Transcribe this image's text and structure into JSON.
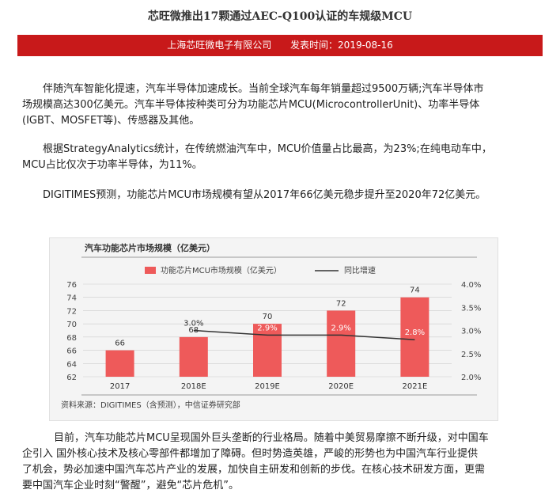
{
  "article": {
    "title": "芯旺微推出17颗通过AEC-Q100认证的车规级MCU",
    "publisher": "上海芯旺微电子有限公司",
    "publish_label": "发表时间：",
    "publish_date": "2019-08-16"
  },
  "paragraphs": {
    "p1_line1": "伴随汽车智能化提速，汽车半导体加速成长。当前全球汽车每年销量超过9500万辆;汽车半导体市",
    "p1_line2": "场规模高达300亿美元。汽车半导体按种类可分为功能芯片MCU(MicrocontrollerUnit)、功率半导体",
    "p1_line3": "(IGBT、MOSFET等)、传感器及其他。",
    "p2_line1": "根据StrategyAnalytics统计，在传统燃油汽车中，MCU价值量占比最高，为23%;在纯电动车中，",
    "p2_line2": "MCU占比仅次于功率半导体，为11%。",
    "p3_line1": "DIGITIMES预测，功能芯片MCU市场规模有望从2017年66亿美元稳步提升至2020年72亿美元。",
    "p4_line1": "目前，汽车功能芯片MCU呈现国外巨头垄断的行业格局。随着中美贸易摩擦不断升级，对中国车",
    "p4_line2": "企引入 国外核心技术及核心零部件都增加了障碍。但时势造英雄，严峻的形势也为中国汽车行业提供",
    "p4_line3": "了机会，势必加速中国汽车芯片产业的发展，加快自主研发和创新的步伐。在核心技术研发方面，更需",
    "p4_line4": "要中国汽车企业时刻“警醒”，避免“芯片危机”。"
  },
  "chart_data": {
    "type": "bar",
    "title": "汽车功能芯片市场规模（亿美元）",
    "categories": [
      "2017",
      "2018E",
      "2019E",
      "2020E",
      "2021E"
    ],
    "series": [
      {
        "name": "功能芯片MCU市场规模（亿美元）",
        "kind": "bar",
        "values": [
          66,
          68,
          70,
          72,
          74
        ],
        "labels": [
          "66",
          "68",
          "70",
          "72",
          "74"
        ]
      },
      {
        "name": "同比增速",
        "kind": "line",
        "values": [
          null,
          3.0,
          2.9,
          2.9,
          2.8
        ],
        "labels": [
          "",
          "3.0%",
          "2.9%",
          "2.9%",
          "2.8%"
        ]
      }
    ],
    "ylim_left": [
      62,
      76
    ],
    "yticks_left": [
      "62",
      "64",
      "66",
      "68",
      "70",
      "72",
      "74",
      "76"
    ],
    "ylim_right": [
      2.0,
      4.0
    ],
    "yticks_right": [
      "2.0%",
      "2.5%",
      "3.0%",
      "3.5%",
      "4.0%"
    ],
    "legend_position": "top",
    "source": "资料来源：DIGITIMES（含预测），中信证券研究部",
    "colors": {
      "bar": "#ee5a5a",
      "line": "#333333",
      "axis": "#cccccc"
    }
  }
}
